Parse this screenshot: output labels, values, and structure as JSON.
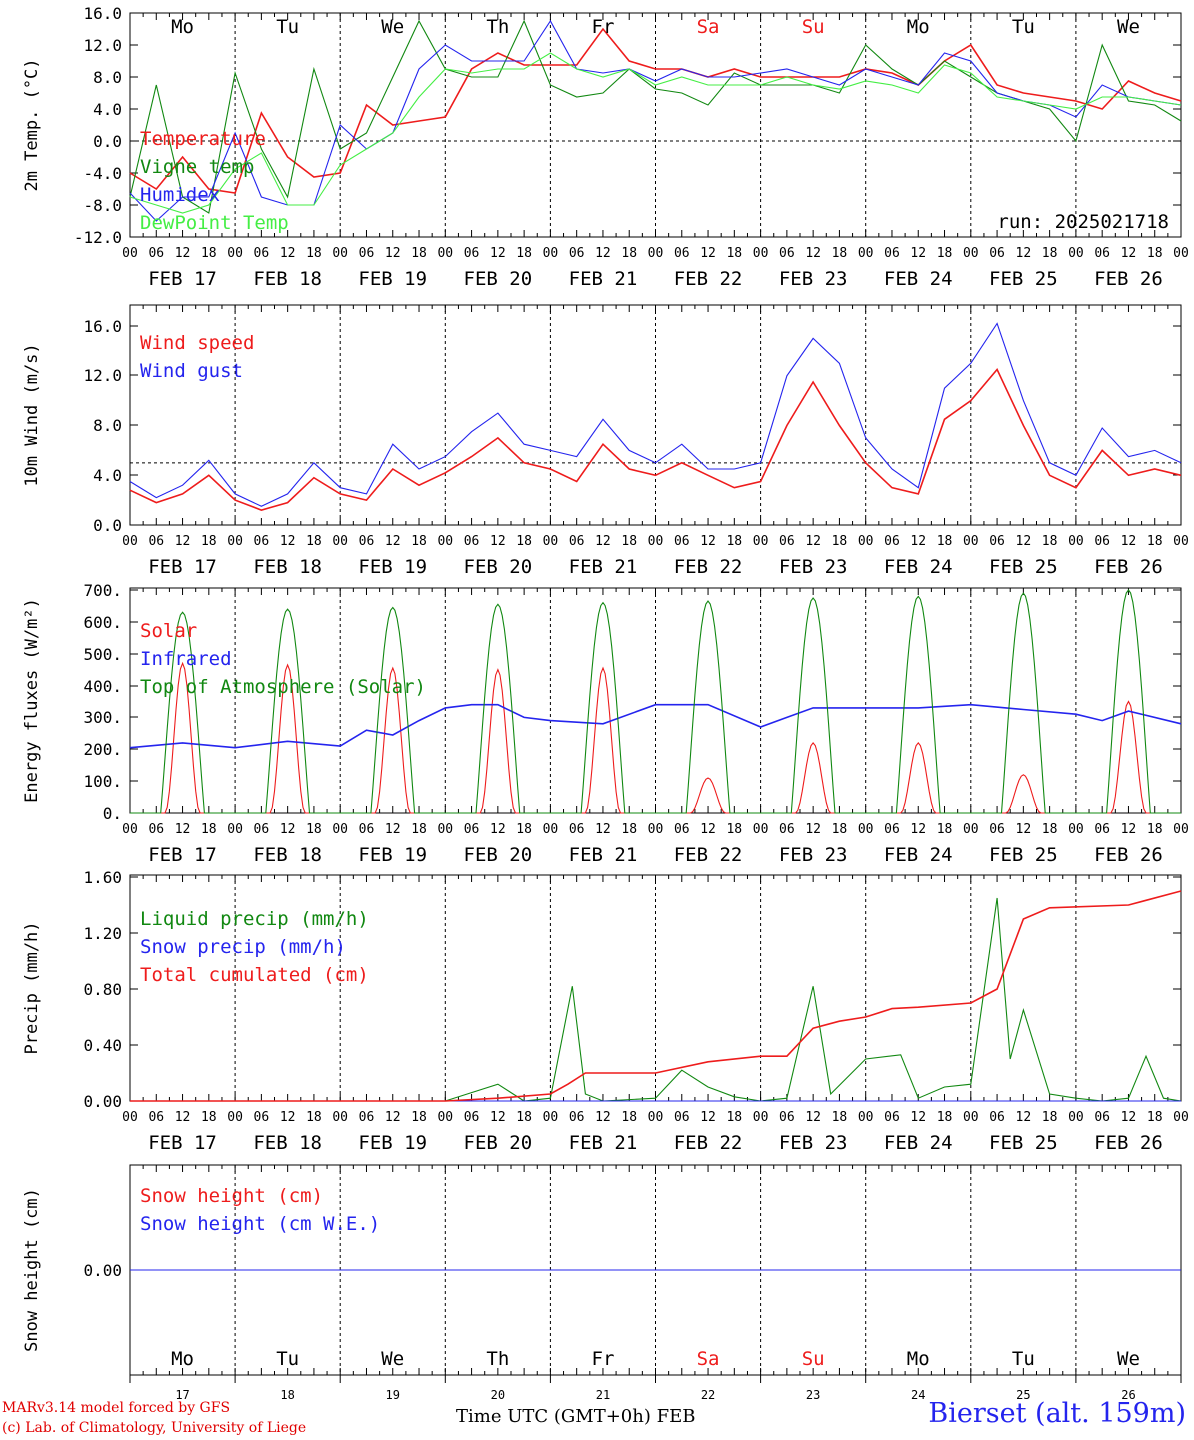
{
  "chart_data": [
    {
      "type": "line",
      "ylabel": "2m Temp. (°C)",
      "ylim": [
        -12,
        16
      ],
      "yticks": [
        "16.0",
        "12.0",
        "8.0",
        "4.0",
        "0.0",
        "-4.0",
        "-8.0",
        "-12.0"
      ],
      "ytick_values": [
        16,
        12,
        8,
        4,
        0,
        -4,
        -8,
        -12
      ],
      "ref_line": 0,
      "annotation": "run: 2025021718",
      "x_hours": [
        0,
        6,
        12,
        18,
        24,
        30,
        36,
        42,
        48,
        54,
        60,
        66,
        72,
        78,
        84,
        90,
        96,
        102,
        108,
        114,
        120,
        126,
        132,
        138,
        144,
        150,
        156,
        162,
        168,
        174,
        180,
        186,
        192,
        198,
        204,
        210,
        216,
        222,
        228,
        234,
        240
      ],
      "series": [
        {
          "name": "Temperature",
          "color": "#ee1c1c",
          "values": [
            -4,
            -6,
            -2,
            -6,
            -6.5,
            3.5,
            -2,
            -4.5,
            -4,
            4.5,
            2,
            2.5,
            3,
            9,
            11,
            9.5,
            9.5,
            9.5,
            14,
            10,
            9,
            9,
            8,
            9,
            8,
            8,
            8,
            8,
            9,
            8.5,
            7,
            10,
            12,
            7,
            6,
            5.5,
            5,
            4,
            7.5,
            6,
            5
          ]
        },
        {
          "name": "Vigne temp",
          "color": "#118811",
          "values": [
            -7,
            7,
            -7,
            -9,
            8.5,
            -1,
            -7,
            9,
            -1,
            1,
            8,
            15,
            9,
            8,
            8,
            15,
            7,
            5.5,
            6,
            9,
            6.5,
            6,
            4.5,
            8.5,
            7,
            7,
            7,
            6,
            12,
            9,
            7,
            10,
            8,
            6,
            5,
            4,
            0,
            12,
            5,
            4.5,
            2.5
          ]
        },
        {
          "name": "Humidex",
          "color": "#2424ee",
          "values": [
            -6.5,
            -10,
            -7,
            -7,
            1,
            -7,
            -8,
            -8,
            2,
            -1,
            1,
            9,
            12,
            10,
            10,
            10,
            15,
            9,
            8.5,
            9,
            7.5,
            9,
            8,
            8,
            8.5,
            9,
            8,
            7,
            9,
            8,
            7,
            11,
            10,
            6,
            5,
            4.5,
            3,
            7,
            5.5,
            5,
            4.5
          ]
        },
        {
          "name": "DewPoint Temp",
          "color": "#44ee44",
          "values": [
            -7,
            -8,
            -9,
            -8,
            -3.5,
            -1.5,
            -8,
            -8,
            -3,
            -1,
            1,
            5.5,
            9,
            8.5,
            9,
            9,
            11,
            9,
            8,
            9,
            7,
            8,
            7,
            7,
            7,
            8,
            7,
            6.5,
            7.5,
            7,
            6,
            9.5,
            8.5,
            5.5,
            5,
            4.5,
            4,
            5.5,
            5.5,
            5,
            4.5
          ]
        }
      ]
    },
    {
      "type": "line",
      "ylabel": "10m Wind (m/s)",
      "ylim": [
        0,
        18
      ],
      "yticks": [
        "16.0",
        "12.0",
        "8.0",
        "4.0",
        "0.0"
      ],
      "ytick_values": [
        16,
        12,
        8,
        4,
        0
      ],
      "ref_line": 5,
      "x_hours": [
        0,
        6,
        12,
        18,
        24,
        30,
        36,
        42,
        48,
        54,
        60,
        66,
        72,
        78,
        84,
        90,
        96,
        102,
        108,
        114,
        120,
        126,
        132,
        138,
        144,
        150,
        156,
        162,
        168,
        174,
        180,
        186,
        192,
        198,
        204,
        210,
        216,
        222,
        228,
        234,
        240
      ],
      "series": [
        {
          "name": "Wind speed",
          "color": "#ee1c1c",
          "values": [
            2.8,
            1.8,
            2.5,
            4,
            2,
            1.2,
            1.8,
            3.8,
            2.5,
            2,
            4.5,
            3.2,
            4.2,
            5.5,
            7,
            5,
            4.5,
            3.5,
            6.5,
            4.5,
            4,
            5,
            4,
            3,
            3.5,
            8,
            11.5,
            8,
            5,
            3,
            2.5,
            8.5,
            10,
            12.5,
            8,
            4,
            3,
            6,
            4,
            4.5,
            4
          ]
        },
        {
          "name": "Wind gust",
          "color": "#2424ee",
          "values": [
            3.5,
            2.2,
            3.2,
            5.2,
            2.5,
            1.5,
            2.5,
            5,
            3,
            2.5,
            6.5,
            4.5,
            5.5,
            7.5,
            9,
            6.5,
            6,
            5.5,
            8.5,
            6,
            5,
            6.5,
            4.5,
            4.5,
            5,
            12,
            15,
            13,
            7,
            4.5,
            3,
            11,
            13,
            16.2,
            10,
            5,
            4,
            7.8,
            5.5,
            6,
            5
          ]
        }
      ]
    },
    {
      "type": "line",
      "ylabel": "Energy fluxes (W/m²)",
      "ylim": [
        0,
        720
      ],
      "yticks": [
        "700.",
        "600.",
        "500.",
        "400.",
        "300.",
        "200.",
        "100.",
        "0."
      ],
      "ytick_values": [
        700,
        600,
        500,
        400,
        300,
        200,
        100,
        0
      ],
      "series": [
        {
          "name": "Solar",
          "color": "#ee1c1c",
          "peaks": [
            470,
            465,
            455,
            450,
            455,
            110,
            220,
            220,
            120,
            350
          ]
        },
        {
          "name": "Infrared",
          "color": "#2424ee",
          "x_hours": [
            0,
            12,
            24,
            36,
            48,
            54,
            60,
            66,
            72,
            78,
            84,
            90,
            96,
            108,
            120,
            132,
            144,
            150,
            156,
            168,
            180,
            192,
            204,
            216,
            222,
            228,
            240
          ],
          "values": [
            205,
            220,
            205,
            225,
            210,
            260,
            245,
            290,
            330,
            340,
            340,
            300,
            290,
            280,
            340,
            340,
            270,
            300,
            330,
            330,
            330,
            340,
            325,
            310,
            290,
            320,
            280
          ]
        },
        {
          "name": "Top of Atmosphere (Solar)",
          "color": "#118811",
          "peaks": [
            630,
            640,
            645,
            655,
            660,
            665,
            675,
            680,
            690,
            700
          ]
        }
      ]
    },
    {
      "type": "line",
      "ylabel": "Precip (mm/h)",
      "ylim": [
        0,
        1.6
      ],
      "yticks": [
        "1.60",
        "1.20",
        "0.80",
        "0.40",
        "0.00"
      ],
      "ytick_values": [
        1.6,
        1.2,
        0.8,
        0.4,
        0
      ],
      "series": [
        {
          "name": "Liquid precip (mm/h)",
          "color": "#118811",
          "x_hours": [
            0,
            72,
            84,
            90,
            96,
            101,
            104,
            108,
            120,
            126,
            132,
            138,
            144,
            150,
            156,
            160,
            168,
            176,
            180,
            186,
            192,
            198,
            201,
            204,
            210,
            216,
            222,
            228,
            232,
            236,
            240
          ],
          "values": [
            0,
            0,
            0.12,
            0,
            0.02,
            0.82,
            0.05,
            0,
            0.02,
            0.22,
            0.1,
            0.03,
            0,
            0.02,
            0.82,
            0.05,
            0.3,
            0.33,
            0.02,
            0.1,
            0.12,
            1.45,
            0.3,
            0.65,
            0.05,
            0.02,
            0,
            0.02,
            0.32,
            0.02,
            0
          ]
        },
        {
          "name": "Snow precip (mm/h)",
          "color": "#2424ee",
          "x_hours": [
            0,
            240
          ],
          "values": [
            0,
            0
          ]
        },
        {
          "name": "Total cumulated (cm)",
          "color": "#ee1c1c",
          "x_hours": [
            0,
            72,
            84,
            96,
            100,
            104,
            120,
            132,
            144,
            150,
            156,
            162,
            168,
            174,
            180,
            192,
            198,
            204,
            210,
            228,
            240
          ],
          "values": [
            0,
            0,
            0.02,
            0.05,
            0.12,
            0.2,
            0.2,
            0.28,
            0.32,
            0.32,
            0.52,
            0.57,
            0.6,
            0.66,
            0.67,
            0.7,
            0.8,
            1.3,
            1.38,
            1.4,
            1.5
          ]
        }
      ]
    },
    {
      "type": "line",
      "ylabel": "Snow height (cm)",
      "ylim": [
        -1,
        1
      ],
      "yticks": [
        "0.00"
      ],
      "ytick_values": [
        0
      ],
      "series": [
        {
          "name": "Snow height (cm)",
          "color": "#ee1c1c",
          "values": [
            0,
            0
          ]
        },
        {
          "name": "Snow height (cm W.E.)",
          "color": "#2424ee",
          "values": [
            0,
            0
          ]
        }
      ]
    }
  ],
  "days": [
    {
      "short": "Mo",
      "date": "FEB 17",
      "num": "17",
      "weekend": false
    },
    {
      "short": "Tu",
      "date": "FEB 18",
      "num": "18",
      "weekend": false
    },
    {
      "short": "We",
      "date": "FEB 19",
      "num": "19",
      "weekend": false
    },
    {
      "short": "Th",
      "date": "FEB 20",
      "num": "20",
      "weekend": false
    },
    {
      "short": "Fr",
      "date": "FEB 21",
      "num": "21",
      "weekend": false
    },
    {
      "short": "Sa",
      "date": "FEB 22",
      "num": "22",
      "weekend": true
    },
    {
      "short": "Su",
      "date": "FEB 23",
      "num": "23",
      "weekend": true
    },
    {
      "short": "Mo",
      "date": "FEB 24",
      "num": "24",
      "weekend": false
    },
    {
      "short": "Tu",
      "date": "FEB 25",
      "num": "25",
      "weekend": false
    },
    {
      "short": "We",
      "date": "FEB 26",
      "num": "26",
      "weekend": false
    }
  ],
  "hour_labels": [
    "00",
    "06",
    "12",
    "18"
  ],
  "colors": {
    "weekday": "#000000",
    "weekend": "#ee1c1c"
  },
  "footer": {
    "credit1": "MARv3.14 model forced by GFS",
    "credit2": "(c) Lab. of Climatology, University of Liege",
    "axis_label": "Time UTC (GMT+0h) FEB",
    "station": "Bierset (alt. 159m)"
  }
}
